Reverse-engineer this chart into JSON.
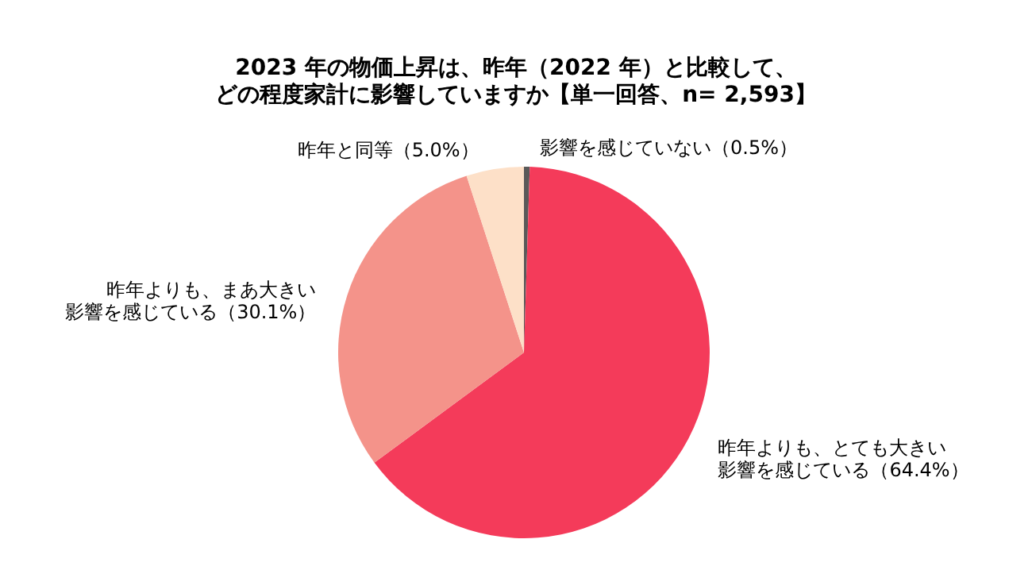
{
  "chart_data": {
    "type": "pie",
    "title": "2023 年の物価上昇は、昨年（2022 年）と比較して、",
    "subtitle": "どの程度家計に影響していますか【単一回答、n= 2,593】",
    "categories": [
      "影響を感じていない",
      "昨年よりも、とても大きい影響を感じている",
      "昨年よりも、まあ大きい影響を感じている",
      "昨年と同等"
    ],
    "values": [
      0.5,
      64.4,
      30.1,
      5.0
    ],
    "colors": [
      "#5a5a5a",
      "#f43b5a",
      "#f4938a",
      "#fde0c8"
    ],
    "value_labels": [
      "（0.5%）",
      "（64.4%）",
      "（30.1%）",
      "（5.0%）"
    ]
  }
}
